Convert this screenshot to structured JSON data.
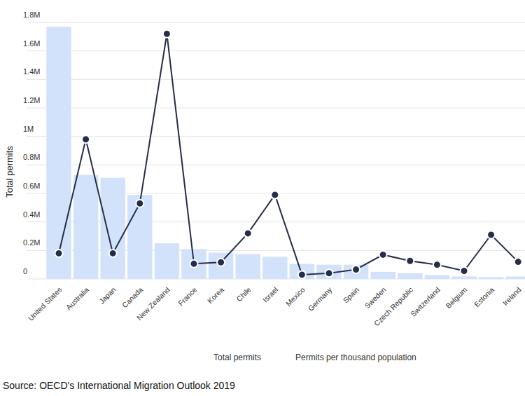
{
  "chart_data": {
    "type": "bar",
    "y_label": "Total permits",
    "source": "Source: OECD's International Migration Outlook 2019",
    "categories": [
      "United States",
      "Australia",
      "Japan",
      "Canada",
      "New Zealand",
      "France",
      "Korea",
      "Chile",
      "Israel",
      "Mexico",
      "Germany",
      "Spain",
      "Sweden",
      "Czech Republic",
      "Switzerland",
      "Belgium",
      "Estonia",
      "Ireland"
    ],
    "series": [
      {
        "name": "Total permits",
        "type": "bar",
        "color": "#d3e2fb",
        "values": [
          1770000,
          730000,
          710000,
          590000,
          250000,
          210000,
          185000,
          175000,
          155000,
          105000,
          100000,
          100000,
          50000,
          40000,
          28000,
          18000,
          13000,
          17000
        ]
      },
      {
        "name": "Permits per thousand population",
        "type": "line",
        "color": "#262d4a",
        "marker": "circle",
        "axis": "y2",
        "values": [
          5.4,
          29.4,
          5.4,
          15.9,
          51.6,
          3.2,
          3.5,
          9.6,
          17.7,
          0.9,
          1.2,
          2.0,
          5.1,
          3.8,
          3.0,
          1.7,
          9.3,
          3.6
        ]
      }
    ],
    "ylim": [
      0,
      1800000
    ],
    "yticks": [
      0,
      {
        "value": 200000,
        "label": "0.2M"
      },
      {
        "value": 400000,
        "label": "0.4M"
      },
      {
        "value": 600000,
        "label": "0.6M"
      },
      {
        "value": 800000,
        "label": "0.8M"
      },
      {
        "value": 1000000,
        "label": "1M"
      },
      {
        "value": 1200000,
        "label": "1.2M"
      },
      {
        "value": 1400000,
        "label": "1.4M"
      },
      {
        "value": 1600000,
        "label": "1.6M"
      },
      {
        "value": 1800000,
        "label": "1.8M"
      }
    ],
    "y2lim": [
      0,
      54
    ],
    "y2ticks": [],
    "grid": true,
    "legend": "bottom"
  }
}
